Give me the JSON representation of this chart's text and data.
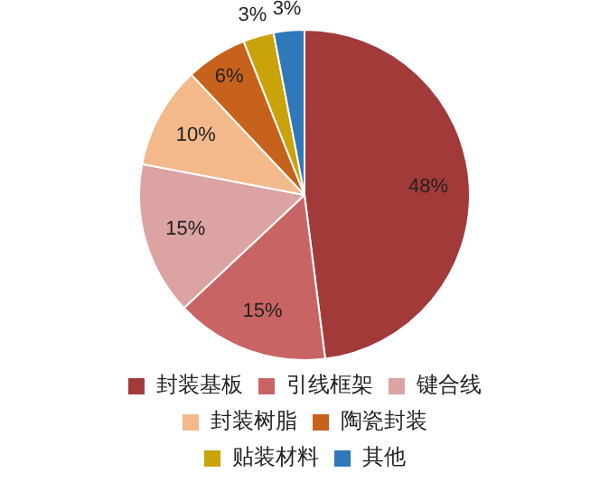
{
  "chart_data": {
    "type": "pie",
    "categories": [
      "封装基板",
      "引线框架",
      "键合线",
      "封装树脂",
      "陶瓷封装",
      "贴装材料",
      "其他"
    ],
    "values": [
      48,
      15,
      15,
      10,
      6,
      3,
      3
    ],
    "colors": [
      "#a33a3a",
      "#c96464",
      "#dca3a3",
      "#f3b98a",
      "#c7621c",
      "#caa20a",
      "#2f78ba"
    ],
    "value_labels": [
      "48%",
      "15%",
      "15%",
      "10%",
      "6%",
      "3%",
      "3%"
    ],
    "legend": "bottom"
  }
}
